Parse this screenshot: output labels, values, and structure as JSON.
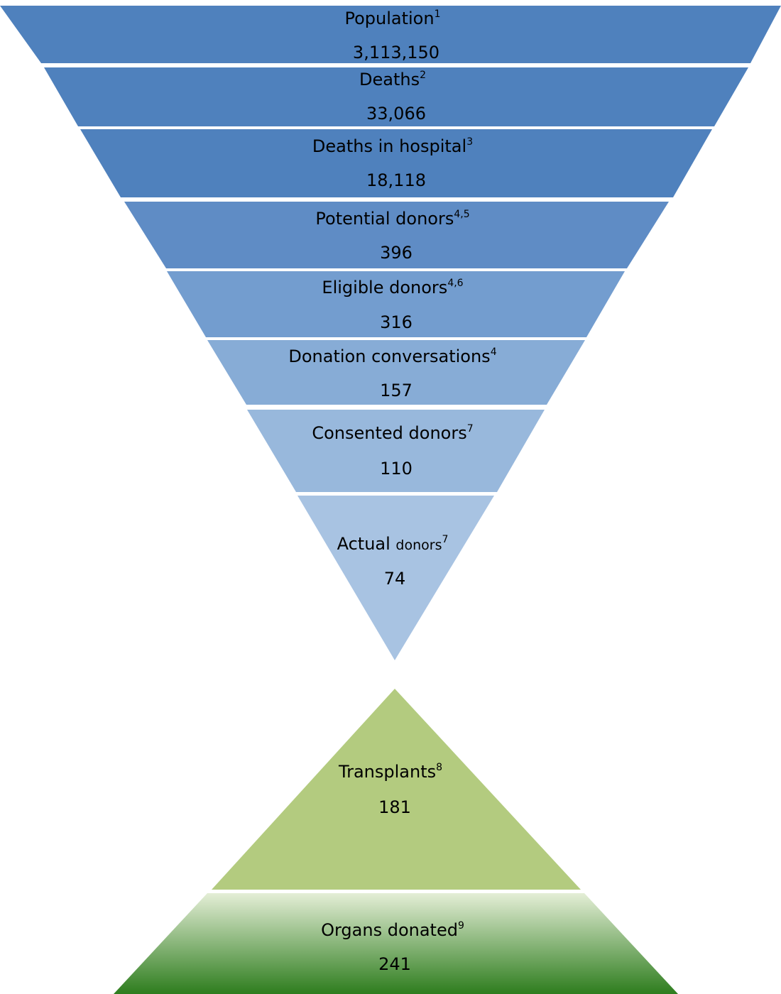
{
  "funnel": [
    {
      "label": "Population",
      "sup": "1",
      "value": "3,113,150",
      "color": "#4f81bd"
    },
    {
      "label": "Deaths",
      "sup": "2",
      "value": "33,066",
      "color": "#4f81bd"
    },
    {
      "label": "Deaths in hospital",
      "sup": "3",
      "value": "18,118",
      "color": "#4f81bd"
    },
    {
      "label": "Potential donors",
      "sup": "4,5",
      "value": "396",
      "color": "#5f8cc5"
    },
    {
      "label": "Eligible donors",
      "sup": "4,6",
      "value": "316",
      "color": "#739dcf"
    },
    {
      "label": "Donation conversations",
      "sup": "4",
      "value": "157",
      "color": "#87acd6"
    },
    {
      "label": "Consented donors",
      "sup": "7",
      "value": "110",
      "color": "#98b8dc"
    },
    {
      "label": "Actual",
      "label_small": "donors",
      "sup": "7",
      "value": "74",
      "color": "#a8c3e2"
    }
  ],
  "pyramid": [
    {
      "label": "Transplants",
      "sup": "8",
      "value": "181",
      "color": "#b3cb7f"
    },
    {
      "label": "Organs donated",
      "sup": "9",
      "value": "241",
      "color_top": "#e4eed6",
      "color_bottom": "#2e7d1e"
    }
  ]
}
